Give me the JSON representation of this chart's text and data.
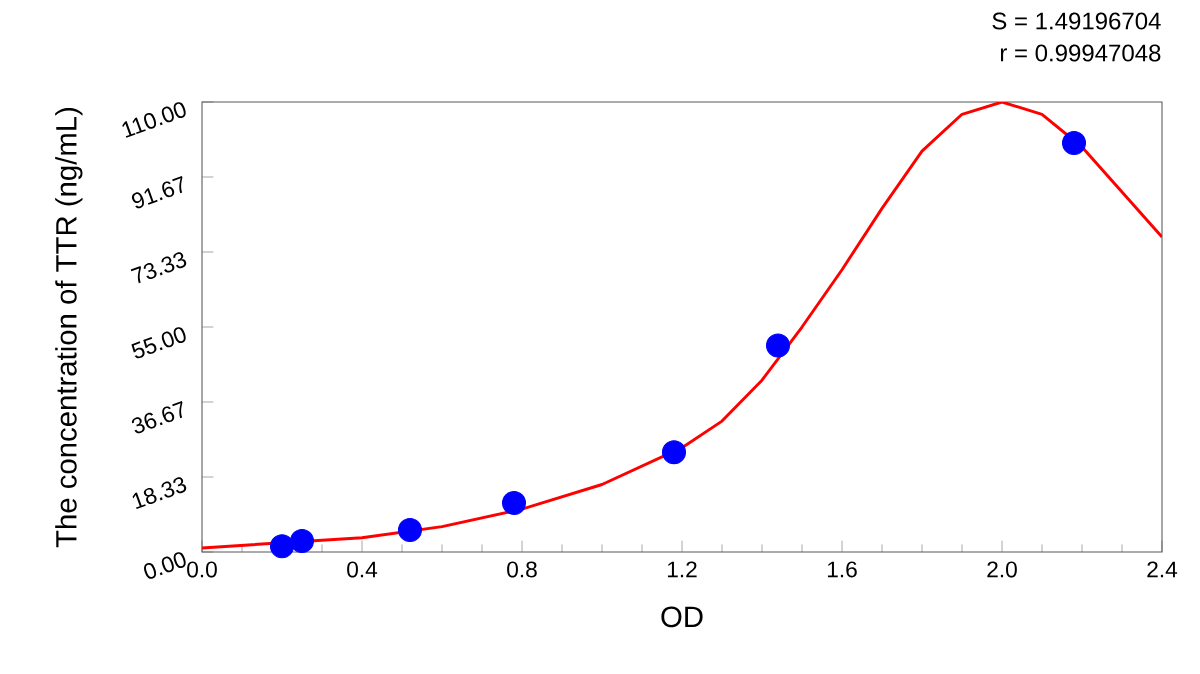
{
  "chart_data": {
    "type": "scatter",
    "xlabel": "OD",
    "ylabel": "The concentration of TTR (ng/mL)",
    "annotations": [
      "S = 1.49196704",
      "r = 0.99947048"
    ],
    "series": [
      {
        "color": "#0000ff",
        "marker": "circle",
        "x": [
          0.2,
          0.25,
          0.52,
          0.78,
          1.18,
          1.44,
          2.18
        ],
        "values": [
          1.4,
          2.7,
          5.4,
          12,
          24.4,
          50.5,
          100
        ]
      },
      {
        "type": "line",
        "color": "#ff0000",
        "marker": "none",
        "x": [
          0,
          0.4,
          0.6,
          0.8,
          1.0,
          1.2,
          1.3,
          1.4,
          1.5,
          1.6,
          1.7,
          1.8,
          1.9,
          2.0,
          2.1,
          2.2,
          2.3,
          2.4
        ],
        "values": [
          1,
          3.5,
          6.2,
          10.5,
          16.5,
          25.5,
          32,
          42,
          55,
          69,
          84,
          98,
          107,
          110,
          107,
          99,
          88,
          77
        ]
      }
    ],
    "xlim": [
      0,
      2.4
    ],
    "ylim": [
      0,
      110
    ],
    "xticks": [
      {
        "value": 0,
        "label": "0.0"
      },
      {
        "value": 0.4,
        "label": "0.4"
      },
      {
        "value": 0.8,
        "label": "0.8"
      },
      {
        "value": 1.2,
        "label": "1.2"
      },
      {
        "value": 1.6,
        "label": "1.6"
      },
      {
        "value": 2.0,
        "label": "2.0"
      },
      {
        "value": 2.4,
        "label": "2.4"
      }
    ],
    "yticks": [
      {
        "value": 0,
        "label": "0.00"
      },
      {
        "value": 18.33,
        "label": "18.33"
      },
      {
        "value": 36.67,
        "label": "36.67"
      },
      {
        "value": 55,
        "label": "55.00"
      },
      {
        "value": 73.33,
        "label": "73.33"
      },
      {
        "value": 91.67,
        "label": "91.67"
      },
      {
        "value": 110,
        "label": "110.00"
      }
    ],
    "grid": false
  }
}
